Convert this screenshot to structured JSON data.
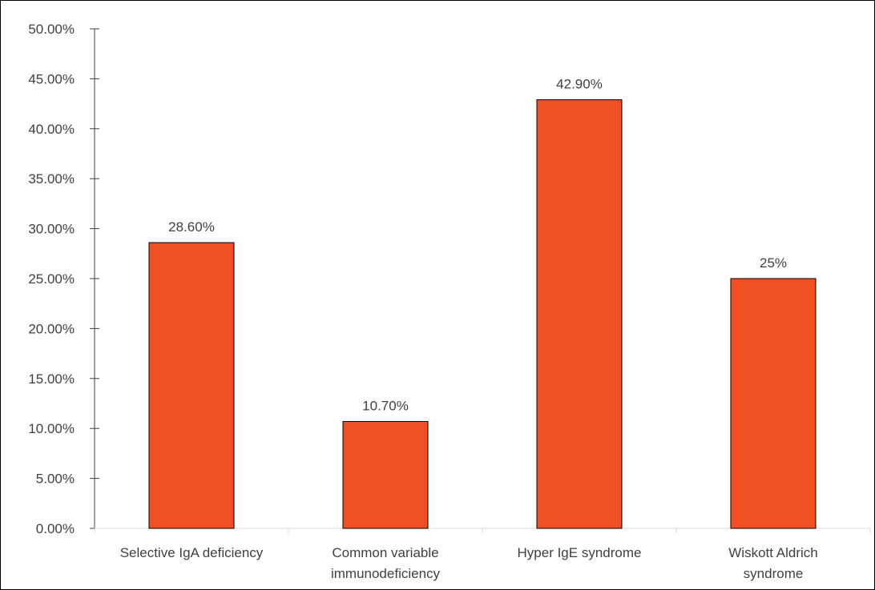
{
  "chart_data": {
    "type": "bar",
    "categories": [
      [
        "Selective IgA deficiency"
      ],
      [
        "Common variable",
        "immunodeficiency"
      ],
      [
        "Hyper IgE syndrome"
      ],
      [
        "Wiskott Aldrich",
        "syndrome"
      ]
    ],
    "values": [
      28.6,
      10.7,
      42.9,
      25
    ],
    "data_labels": [
      "28.60%",
      "10.70%",
      "42.90%",
      "25%"
    ],
    "y_ticks": [
      "0.00%",
      "5.00%",
      "10.00%",
      "15.00%",
      "20.00%",
      "25.00%",
      "30.00%",
      "35.00%",
      "40.00%",
      "45.00%",
      "50.00%"
    ],
    "ylim": [
      0,
      50
    ],
    "grid": false,
    "bar_color": "#F05023",
    "axis_color": "#D9D9D9",
    "y_axis_line_color": "#404040"
  }
}
